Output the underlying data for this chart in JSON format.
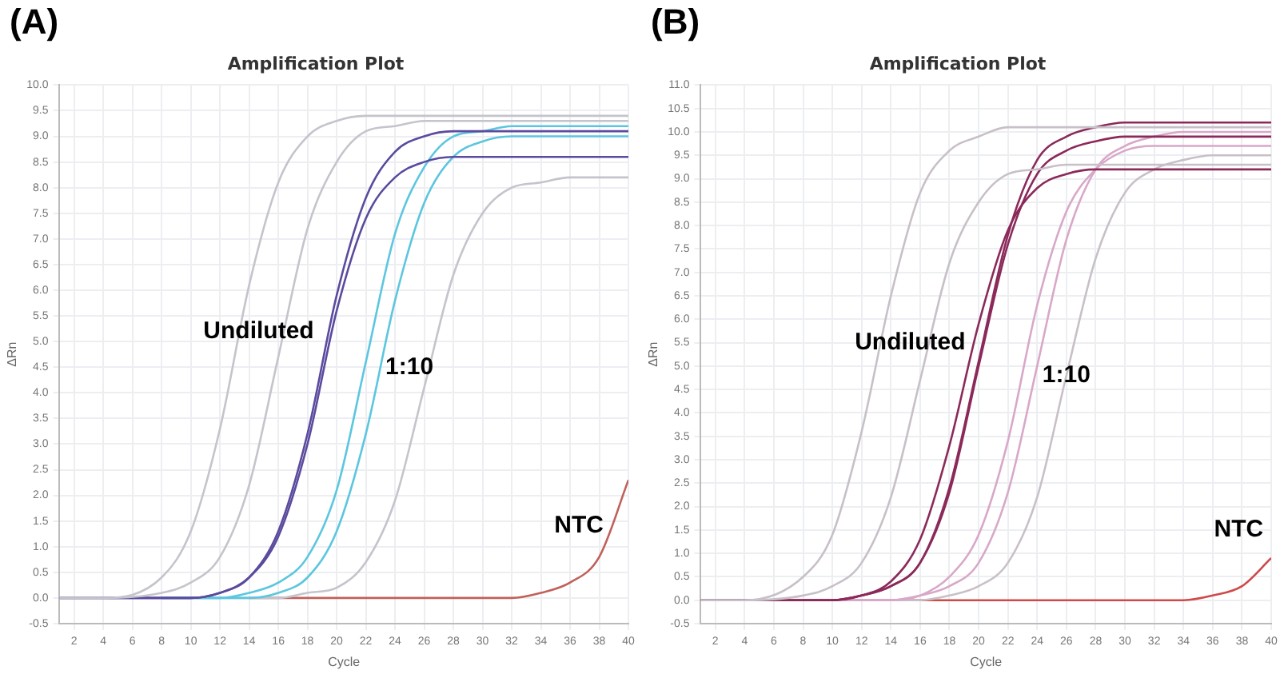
{
  "chart_data": [
    {
      "type": "line",
      "title": "Amplification Plot",
      "xlabel": "Cycle",
      "ylabel": "ΔRn",
      "grid": true,
      "legend": false,
      "marker": "none",
      "annotations": [
        "(A)",
        "Undiluted",
        "1:10",
        "NTC"
      ],
      "xlim": [
        1,
        40
      ],
      "xticks": [
        2,
        4,
        6,
        8,
        10,
        12,
        14,
        16,
        18,
        20,
        22,
        24,
        26,
        28,
        30,
        32,
        34,
        36,
        38,
        40
      ],
      "ylim": [
        -0.5,
        10
      ],
      "yticks": [
        {
          "value": -0.5,
          "label": "-0.5"
        },
        {
          "value": 0,
          "label": "0.0"
        },
        {
          "value": 0.5,
          "label": "0.5"
        },
        {
          "value": 1,
          "label": "1.0"
        },
        {
          "value": 1.5,
          "label": "1.5"
        },
        {
          "value": 2,
          "label": "2.0"
        },
        {
          "value": 2.5,
          "label": "2.5"
        },
        {
          "value": 3,
          "label": "3.0"
        },
        {
          "value": 3.5,
          "label": "3.5"
        },
        {
          "value": 4,
          "label": "4.0"
        },
        {
          "value": 4.5,
          "label": "4.5"
        },
        {
          "value": 5,
          "label": "5.0"
        },
        {
          "value": 5.5,
          "label": "5.5"
        },
        {
          "value": 6,
          "label": "6.0"
        },
        {
          "value": 6.5,
          "label": "6.5"
        },
        {
          "value": 7,
          "label": "7.0"
        },
        {
          "value": 7.5,
          "label": "7.5"
        },
        {
          "value": 8,
          "label": "8.0"
        },
        {
          "value": 8.5,
          "label": "8.5"
        },
        {
          "value": 9,
          "label": "9.0"
        },
        {
          "value": 9.5,
          "label": "9.5"
        },
        {
          "value": 10,
          "label": "10.0"
        }
      ],
      "x": [
        1,
        4,
        8,
        10,
        12,
        14,
        16,
        18,
        20,
        22,
        24,
        26,
        28,
        30,
        32,
        34,
        36,
        38,
        40
      ],
      "series": [
        {
          "color": "#c4c4cc",
          "values": [
            0.0,
            0.0,
            0.4,
            1.3,
            3.3,
            6.1,
            8.1,
            9.0,
            9.3,
            9.4,
            9.4,
            9.4,
            9.4,
            9.4,
            9.4,
            9.4,
            9.4,
            9.4,
            9.4
          ]
        },
        {
          "color": "#c4c4cc",
          "values": [
            0.0,
            0.0,
            0.1,
            0.3,
            0.8,
            2.2,
            4.7,
            7.2,
            8.5,
            9.1,
            9.2,
            9.3,
            9.3,
            9.3,
            9.3,
            9.3,
            9.3,
            9.3,
            9.3
          ]
        },
        {
          "color": "#5b4a9e",
          "values": [
            0.0,
            0.0,
            0.0,
            0.0,
            0.1,
            0.4,
            1.3,
            3.2,
            5.9,
            7.8,
            8.7,
            9.0,
            9.1,
            9.1,
            9.1,
            9.1,
            9.1,
            9.1,
            9.1
          ]
        },
        {
          "color": "#5b4a9e",
          "values": [
            0.0,
            0.0,
            0.0,
            0.0,
            0.1,
            0.4,
            1.2,
            3.0,
            5.6,
            7.4,
            8.2,
            8.5,
            8.6,
            8.6,
            8.6,
            8.6,
            8.6,
            8.6,
            8.6
          ]
        },
        {
          "color": "#5cc6df",
          "values": [
            null,
            null,
            0.0,
            0.0,
            0.0,
            0.1,
            0.3,
            0.8,
            2.1,
            4.6,
            7.1,
            8.4,
            9.0,
            9.1,
            9.2,
            9.2,
            9.2,
            9.2,
            9.2
          ]
        },
        {
          "color": "#5cc6df",
          "values": [
            null,
            null,
            0.0,
            0.0,
            0.0,
            0.0,
            0.1,
            0.4,
            1.3,
            3.2,
            5.8,
            7.7,
            8.6,
            8.9,
            9.0,
            9.0,
            9.0,
            9.0,
            9.0
          ]
        },
        {
          "color": "#c4c4cc",
          "values": [
            0.0,
            0.0,
            0.0,
            0.0,
            0.0,
            0.0,
            0.0,
            0.1,
            0.2,
            0.7,
            1.9,
            4.1,
            6.3,
            7.5,
            8.0,
            8.1,
            8.2,
            8.2,
            8.2
          ]
        },
        {
          "color": "#c0605a",
          "values": [
            null,
            null,
            null,
            null,
            null,
            0.0,
            0.0,
            0.0,
            0.0,
            0.0,
            0.0,
            0.0,
            0.0,
            0.0,
            0.0,
            0.1,
            0.3,
            0.8,
            2.3
          ]
        }
      ]
    },
    {
      "type": "line",
      "title": "Amplification Plot",
      "xlabel": "Cycle",
      "ylabel": "ΔRn",
      "grid": true,
      "legend": false,
      "marker": "none",
      "annotations": [
        "(B)",
        "Undiluted",
        "1:10",
        "NTC"
      ],
      "xlim": [
        1,
        40
      ],
      "xticks": [
        2,
        4,
        6,
        8,
        10,
        12,
        14,
        16,
        18,
        20,
        22,
        24,
        26,
        28,
        30,
        32,
        34,
        36,
        38,
        40
      ],
      "ylim": [
        -0.5,
        11
      ],
      "yticks": [
        {
          "value": -0.5,
          "label": "-0.5"
        },
        {
          "value": 0,
          "label": "0.0"
        },
        {
          "value": 0.5,
          "label": "0.5"
        },
        {
          "value": 1,
          "label": "1.0"
        },
        {
          "value": 1.5,
          "label": "1.5"
        },
        {
          "value": 2,
          "label": "2.0"
        },
        {
          "value": 2.5,
          "label": "2.5"
        },
        {
          "value": 3,
          "label": "3.0"
        },
        {
          "value": 3.5,
          "label": "3.5"
        },
        {
          "value": 4,
          "label": "4.0"
        },
        {
          "value": 4.5,
          "label": "4.5"
        },
        {
          "value": 5,
          "label": "5.0"
        },
        {
          "value": 5.5,
          "label": "5.5"
        },
        {
          "value": 6,
          "label": "6.0"
        },
        {
          "value": 6.5,
          "label": "6.5"
        },
        {
          "value": 7,
          "label": "7.0"
        },
        {
          "value": 7.5,
          "label": "7.5"
        },
        {
          "value": 8,
          "label": "8.0"
        },
        {
          "value": 8.5,
          "label": "8.5"
        },
        {
          "value": 9,
          "label": "9.0"
        },
        {
          "value": 9.5,
          "label": "9.5"
        },
        {
          "value": 10,
          "label": "10.0"
        },
        {
          "value": 10.5,
          "label": "10.5"
        },
        {
          "value": 11,
          "label": "11.0"
        }
      ],
      "x": [
        1,
        4,
        8,
        10,
        12,
        14,
        16,
        18,
        20,
        22,
        24,
        26,
        28,
        30,
        32,
        34,
        36,
        38,
        40
      ],
      "series": [
        {
          "color": "#c8c0c8",
          "values": [
            0.0,
            0.0,
            0.5,
            1.4,
            3.6,
            6.5,
            8.7,
            9.6,
            9.9,
            10.1,
            10.1,
            10.1,
            10.1,
            10.1,
            10.1,
            10.1,
            10.1,
            10.1,
            10.1
          ]
        },
        {
          "color": "#c8c0c8",
          "values": [
            0.0,
            0.0,
            0.1,
            0.3,
            0.8,
            2.2,
            4.7,
            7.2,
            8.5,
            9.1,
            9.2,
            9.3,
            9.3,
            9.3,
            9.3,
            9.3,
            9.3,
            9.3,
            9.3
          ]
        },
        {
          "color": "#8b2a5a",
          "values": [
            0.0,
            0.0,
            0.0,
            0.0,
            0.1,
            0.3,
            0.8,
            2.4,
            5.1,
            7.8,
            9.4,
            9.9,
            10.1,
            10.2,
            10.2,
            10.2,
            10.2,
            10.2,
            10.2
          ]
        },
        {
          "color": "#8b2a5a",
          "values": [
            0.0,
            0.0,
            0.0,
            0.0,
            0.1,
            0.3,
            0.8,
            2.3,
            5.0,
            7.6,
            9.1,
            9.6,
            9.8,
            9.9,
            9.9,
            9.9,
            9.9,
            9.9,
            9.9
          ]
        },
        {
          "color": "#8b2a5a",
          "values": [
            0.0,
            0.0,
            0.0,
            0.0,
            0.1,
            0.4,
            1.3,
            3.3,
            5.9,
            7.9,
            8.8,
            9.1,
            9.2,
            9.2,
            9.2,
            9.2,
            9.2,
            9.2,
            9.2
          ]
        },
        {
          "color": "#d8a8c8",
          "values": [
            0.0,
            0.0,
            0.0,
            0.0,
            0.0,
            0.0,
            0.1,
            0.5,
            1.4,
            3.4,
            6.3,
            8.3,
            9.2,
            9.6,
            9.7,
            9.7,
            9.7,
            9.7,
            9.7
          ]
        },
        {
          "color": "#d8a8c8",
          "values": [
            0.0,
            0.0,
            0.0,
            0.0,
            0.0,
            0.0,
            0.1,
            0.3,
            0.8,
            2.3,
            5.0,
            7.7,
            9.2,
            9.7,
            9.9,
            10.0,
            10.0,
            10.0,
            10.0
          ]
        },
        {
          "color": "#c8c0c8",
          "values": [
            0.0,
            0.0,
            0.0,
            0.0,
            0.0,
            0.0,
            0.0,
            0.1,
            0.3,
            0.8,
            2.2,
            4.8,
            7.3,
            8.7,
            9.2,
            9.4,
            9.5,
            9.5,
            9.5
          ]
        },
        {
          "color": "#d04848",
          "values": [
            null,
            null,
            0.0,
            0.0,
            0.0,
            0.0,
            0.0,
            0.0,
            0.0,
            0.0,
            0.0,
            0.0,
            0.0,
            0.0,
            0.0,
            0.0,
            0.1,
            0.3,
            0.9
          ]
        }
      ]
    }
  ]
}
